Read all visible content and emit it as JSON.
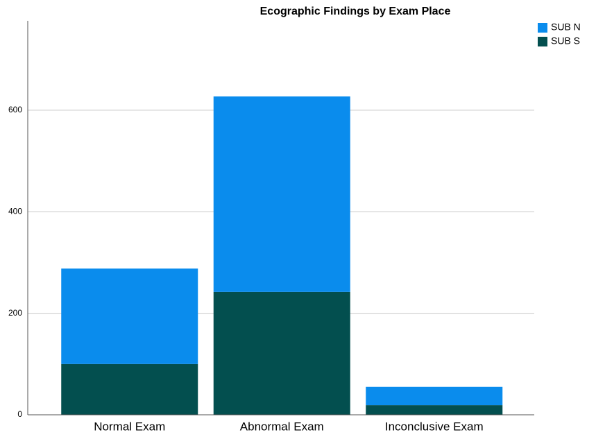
{
  "chart_data": {
    "type": "bar",
    "stacked": true,
    "title": "Ecographic Findings by Exam Place",
    "categories": [
      "Normal Exam",
      "Abnormal Exam",
      "Inconclusive Exam"
    ],
    "series": [
      {
        "name": "SUB N",
        "color": "#0a8ced",
        "values": [
          188,
          385,
          36
        ]
      },
      {
        "name": "SUB S",
        "color": "#034f4f",
        "values": [
          100,
          242,
          19
        ]
      }
    ],
    "ylim": [
      0,
      776
    ],
    "yticks": [
      0,
      200,
      400,
      600
    ],
    "grid": true,
    "legend": "top-right"
  }
}
